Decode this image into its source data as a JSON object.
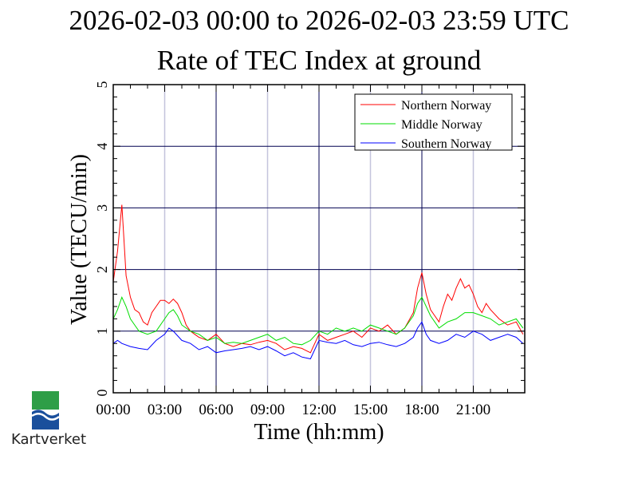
{
  "chart_data": {
    "type": "line",
    "title": "2026-02-03 00:00 to 2026-02-03 23:59 UTC",
    "subtitle": "Rate of TEC Index at ground",
    "xlabel": "Time (hh:mm)",
    "ylabel": "Value (TECU/min)",
    "xlim": [
      0,
      24
    ],
    "ylim": [
      0,
      5
    ],
    "xticks": [
      0,
      3,
      6,
      9,
      12,
      15,
      18,
      21
    ],
    "xtick_labels": [
      "00:00",
      "03:00",
      "06:00",
      "09:00",
      "12:00",
      "15:00",
      "18:00",
      "21:00"
    ],
    "yticks": [
      0,
      1,
      2,
      3,
      4,
      5
    ],
    "ytick_labels": [
      "0",
      "1",
      "2",
      "3",
      "4",
      "5"
    ],
    "grid": true,
    "legend_position": "top-right",
    "series": [
      {
        "name": "Northern Norway",
        "color": "#ff0000",
        "x": [
          0,
          0.25,
          0.5,
          0.6,
          0.75,
          1.0,
          1.25,
          1.5,
          1.75,
          2.0,
          2.25,
          2.5,
          2.75,
          3.0,
          3.25,
          3.5,
          3.75,
          4.0,
          4.25,
          4.5,
          4.75,
          5.0,
          5.5,
          6.0,
          6.5,
          7.0,
          7.5,
          8.0,
          8.5,
          9.0,
          9.5,
          10.0,
          10.5,
          11.0,
          11.5,
          12.0,
          12.5,
          13.0,
          13.5,
          14.0,
          14.5,
          15.0,
          15.5,
          16.0,
          16.5,
          17.0,
          17.5,
          17.75,
          18.0,
          18.25,
          18.5,
          18.75,
          19.0,
          19.25,
          19.5,
          19.75,
          20.0,
          20.25,
          20.5,
          20.75,
          21.0,
          21.25,
          21.5,
          21.75,
          22.0,
          22.5,
          23.0,
          23.5,
          23.9
        ],
        "y": [
          1.8,
          2.3,
          3.05,
          2.6,
          1.9,
          1.55,
          1.35,
          1.3,
          1.15,
          1.1,
          1.3,
          1.4,
          1.5,
          1.5,
          1.45,
          1.52,
          1.45,
          1.3,
          1.1,
          1.0,
          0.95,
          0.9,
          0.85,
          0.95,
          0.8,
          0.75,
          0.8,
          0.78,
          0.82,
          0.85,
          0.8,
          0.7,
          0.75,
          0.72,
          0.65,
          0.95,
          0.85,
          0.9,
          0.95,
          1.0,
          0.9,
          1.05,
          1.0,
          1.1,
          0.95,
          1.05,
          1.3,
          1.7,
          1.95,
          1.6,
          1.35,
          1.25,
          1.15,
          1.4,
          1.6,
          1.5,
          1.7,
          1.85,
          1.7,
          1.75,
          1.6,
          1.4,
          1.3,
          1.45,
          1.35,
          1.2,
          1.1,
          1.15,
          0.95
        ]
      },
      {
        "name": "Middle Norway",
        "color": "#00dd00",
        "x": [
          0,
          0.25,
          0.5,
          0.75,
          1.0,
          1.25,
          1.5,
          2.0,
          2.5,
          3.0,
          3.25,
          3.5,
          3.75,
          4.0,
          4.5,
          5.0,
          5.5,
          6.0,
          6.5,
          7.0,
          7.5,
          8.0,
          8.5,
          9.0,
          9.5,
          10.0,
          10.5,
          11.0,
          11.5,
          12.0,
          12.5,
          13.0,
          13.5,
          14.0,
          14.5,
          15.0,
          15.5,
          16.0,
          16.5,
          17.0,
          17.5,
          17.75,
          18.0,
          18.5,
          19.0,
          19.5,
          20.0,
          20.5,
          21.0,
          21.5,
          22.0,
          22.5,
          23.0,
          23.5,
          23.9
        ],
        "y": [
          1.2,
          1.35,
          1.55,
          1.4,
          1.2,
          1.1,
          1.0,
          0.95,
          1.0,
          1.2,
          1.3,
          1.35,
          1.25,
          1.1,
          1.0,
          0.95,
          0.85,
          0.9,
          0.8,
          0.82,
          0.8,
          0.85,
          0.9,
          0.95,
          0.85,
          0.9,
          0.8,
          0.78,
          0.85,
          1.0,
          0.95,
          1.05,
          1.0,
          1.05,
          1.0,
          1.1,
          1.05,
          1.0,
          0.95,
          1.05,
          1.25,
          1.45,
          1.55,
          1.25,
          1.05,
          1.15,
          1.2,
          1.3,
          1.3,
          1.25,
          1.2,
          1.1,
          1.15,
          1.2,
          1.05
        ]
      },
      {
        "name": "Southern Norway",
        "color": "#0000ff",
        "x": [
          0,
          0.25,
          0.5,
          1.0,
          1.5,
          2.0,
          2.5,
          3.0,
          3.25,
          3.5,
          4.0,
          4.5,
          5.0,
          5.5,
          6.0,
          6.5,
          7.0,
          7.5,
          8.0,
          8.5,
          9.0,
          9.5,
          10.0,
          10.5,
          11.0,
          11.5,
          12.0,
          12.5,
          13.0,
          13.5,
          14.0,
          14.5,
          15.0,
          15.5,
          16.0,
          16.5,
          17.0,
          17.5,
          17.75,
          18.0,
          18.25,
          18.5,
          19.0,
          19.5,
          20.0,
          20.5,
          21.0,
          21.5,
          22.0,
          22.5,
          23.0,
          23.5,
          23.9
        ],
        "y": [
          0.8,
          0.85,
          0.8,
          0.75,
          0.72,
          0.7,
          0.85,
          0.95,
          1.05,
          1.0,
          0.85,
          0.8,
          0.7,
          0.75,
          0.65,
          0.68,
          0.7,
          0.72,
          0.75,
          0.7,
          0.75,
          0.68,
          0.6,
          0.65,
          0.58,
          0.55,
          0.85,
          0.82,
          0.8,
          0.85,
          0.78,
          0.75,
          0.8,
          0.82,
          0.78,
          0.75,
          0.8,
          0.9,
          1.05,
          1.15,
          0.95,
          0.85,
          0.8,
          0.85,
          0.95,
          0.9,
          1.0,
          0.95,
          0.85,
          0.9,
          0.95,
          0.9,
          0.8
        ]
      }
    ]
  },
  "logo": {
    "text": "Kartverket",
    "colors": {
      "green": "#2e9e47",
      "blue": "#1a4f9c"
    }
  }
}
